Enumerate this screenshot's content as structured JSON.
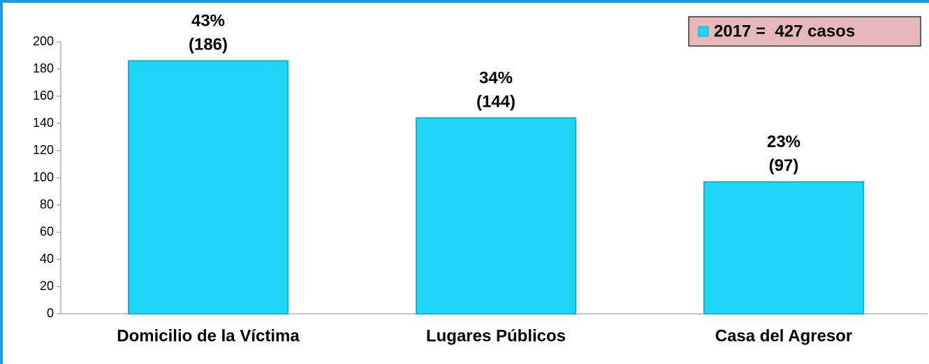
{
  "chart_data": {
    "type": "bar",
    "categories": [
      "Domicilio de la Víctima",
      "Lugares Públicos",
      "Casa del Agresor"
    ],
    "series": [
      {
        "name": "2017 =  427 casos",
        "color": "#1fd5f7",
        "values": [
          186,
          144,
          97
        ],
        "value_labels": [
          "(186)",
          "(144)",
          "(97)"
        ],
        "percentages": [
          43,
          34,
          23
        ],
        "percentage_labels": [
          "43%",
          "34%",
          "23%"
        ]
      }
    ],
    "ylim": [
      0,
      200
    ],
    "yticks": [
      0,
      20,
      40,
      60,
      80,
      100,
      120,
      140,
      160,
      180,
      200
    ],
    "legend": "top-right"
  }
}
